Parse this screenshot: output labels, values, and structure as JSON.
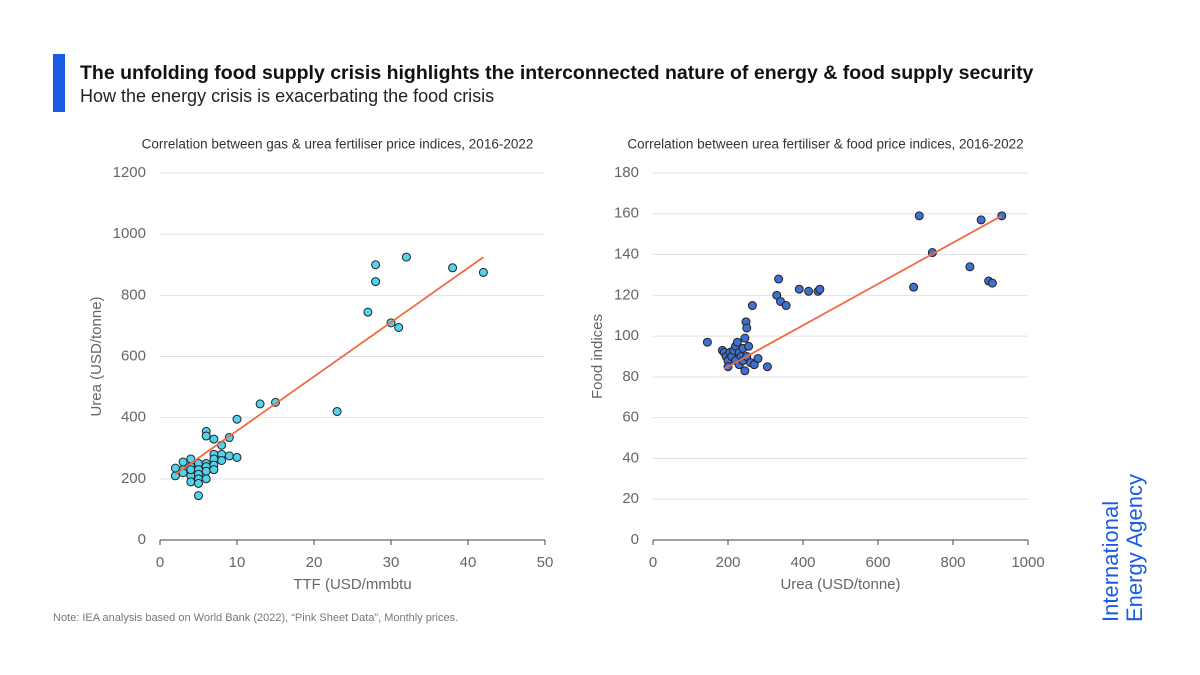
{
  "header": {
    "title": "The unfolding food supply crisis highlights the interconnected nature of energy & food supply security",
    "subtitle": "How the energy crisis is exacerbating the food crisis"
  },
  "note": "Note: IEA analysis based on World Bank (2022), “Pink Sheet Data”, Monthly prices.",
  "logo": [
    "International",
    "Energy Agency"
  ],
  "chart_data": [
    {
      "type": "scatter",
      "title": "Correlation between gas & urea fertiliser price indices, 2016-2022",
      "x_label": "TTF (USD/mmbtu",
      "y_label": "Urea (USD/tonne)",
      "xlim": [
        0,
        50
      ],
      "xticks": [
        0,
        10,
        20,
        30,
        40,
        50
      ],
      "ylim": [
        0,
        1200
      ],
      "yticks": [
        0,
        200,
        400,
        600,
        800,
        1000,
        1200
      ],
      "grid": true,
      "color": "#4fd3ee",
      "x": [
        2,
        2,
        3,
        3,
        3,
        4,
        4,
        4,
        4,
        4,
        5,
        5,
        5,
        5,
        5,
        5,
        6,
        6,
        6,
        6,
        6,
        6,
        7,
        7,
        7,
        7,
        7,
        8,
        8,
        8,
        9,
        9,
        10,
        10,
        13,
        15,
        23,
        27,
        28,
        28,
        30,
        31,
        32,
        38,
        42
      ],
      "y": [
        210,
        235,
        230,
        255,
        220,
        265,
        240,
        210,
        190,
        230,
        250,
        230,
        215,
        200,
        185,
        145,
        355,
        340,
        250,
        240,
        225,
        200,
        330,
        280,
        265,
        245,
        230,
        310,
        280,
        260,
        335,
        275,
        395,
        270,
        445,
        450,
        420,
        745,
        900,
        845,
        710,
        695,
        925,
        890,
        875
      ],
      "trendline": {
        "color": "#f26b43",
        "x": [
          2,
          42
        ],
        "y": [
          215,
          925
        ]
      }
    },
    {
      "type": "scatter",
      "title": "Correlation between urea fertiliser & food price indices, 2016-2022",
      "x_label": "Urea (USD/tonne)",
      "y_label": "Food indices",
      "xlim": [
        0,
        1000
      ],
      "xticks": [
        0,
        200,
        400,
        600,
        800,
        1000
      ],
      "ylim": [
        0,
        180
      ],
      "yticks": [
        0,
        20,
        40,
        60,
        80,
        100,
        120,
        140,
        160,
        180
      ],
      "grid": true,
      "color": "#3e6fd1",
      "x": [
        145,
        185,
        190,
        195,
        200,
        200,
        205,
        210,
        215,
        220,
        220,
        225,
        230,
        230,
        235,
        240,
        240,
        245,
        245,
        248,
        250,
        250,
        255,
        260,
        265,
        270,
        280,
        305,
        330,
        335,
        340,
        355,
        390,
        415,
        440,
        445,
        695,
        710,
        745,
        845,
        875,
        895,
        905,
        930
      ],
      "y": [
        97,
        93,
        92,
        90,
        88,
        85,
        92,
        90,
        93,
        88,
        95,
        97,
        92,
        86,
        90,
        94,
        88,
        83,
        99,
        107,
        104,
        90,
        95,
        87,
        115,
        86,
        89,
        85,
        120,
        128,
        117,
        115,
        123,
        122,
        122,
        123,
        124,
        159,
        141,
        134,
        157,
        127,
        126,
        159
      ],
      "trendline": {
        "color": "#f26b43",
        "x": [
          190,
          930
        ],
        "y": [
          84,
          159
        ]
      }
    }
  ]
}
